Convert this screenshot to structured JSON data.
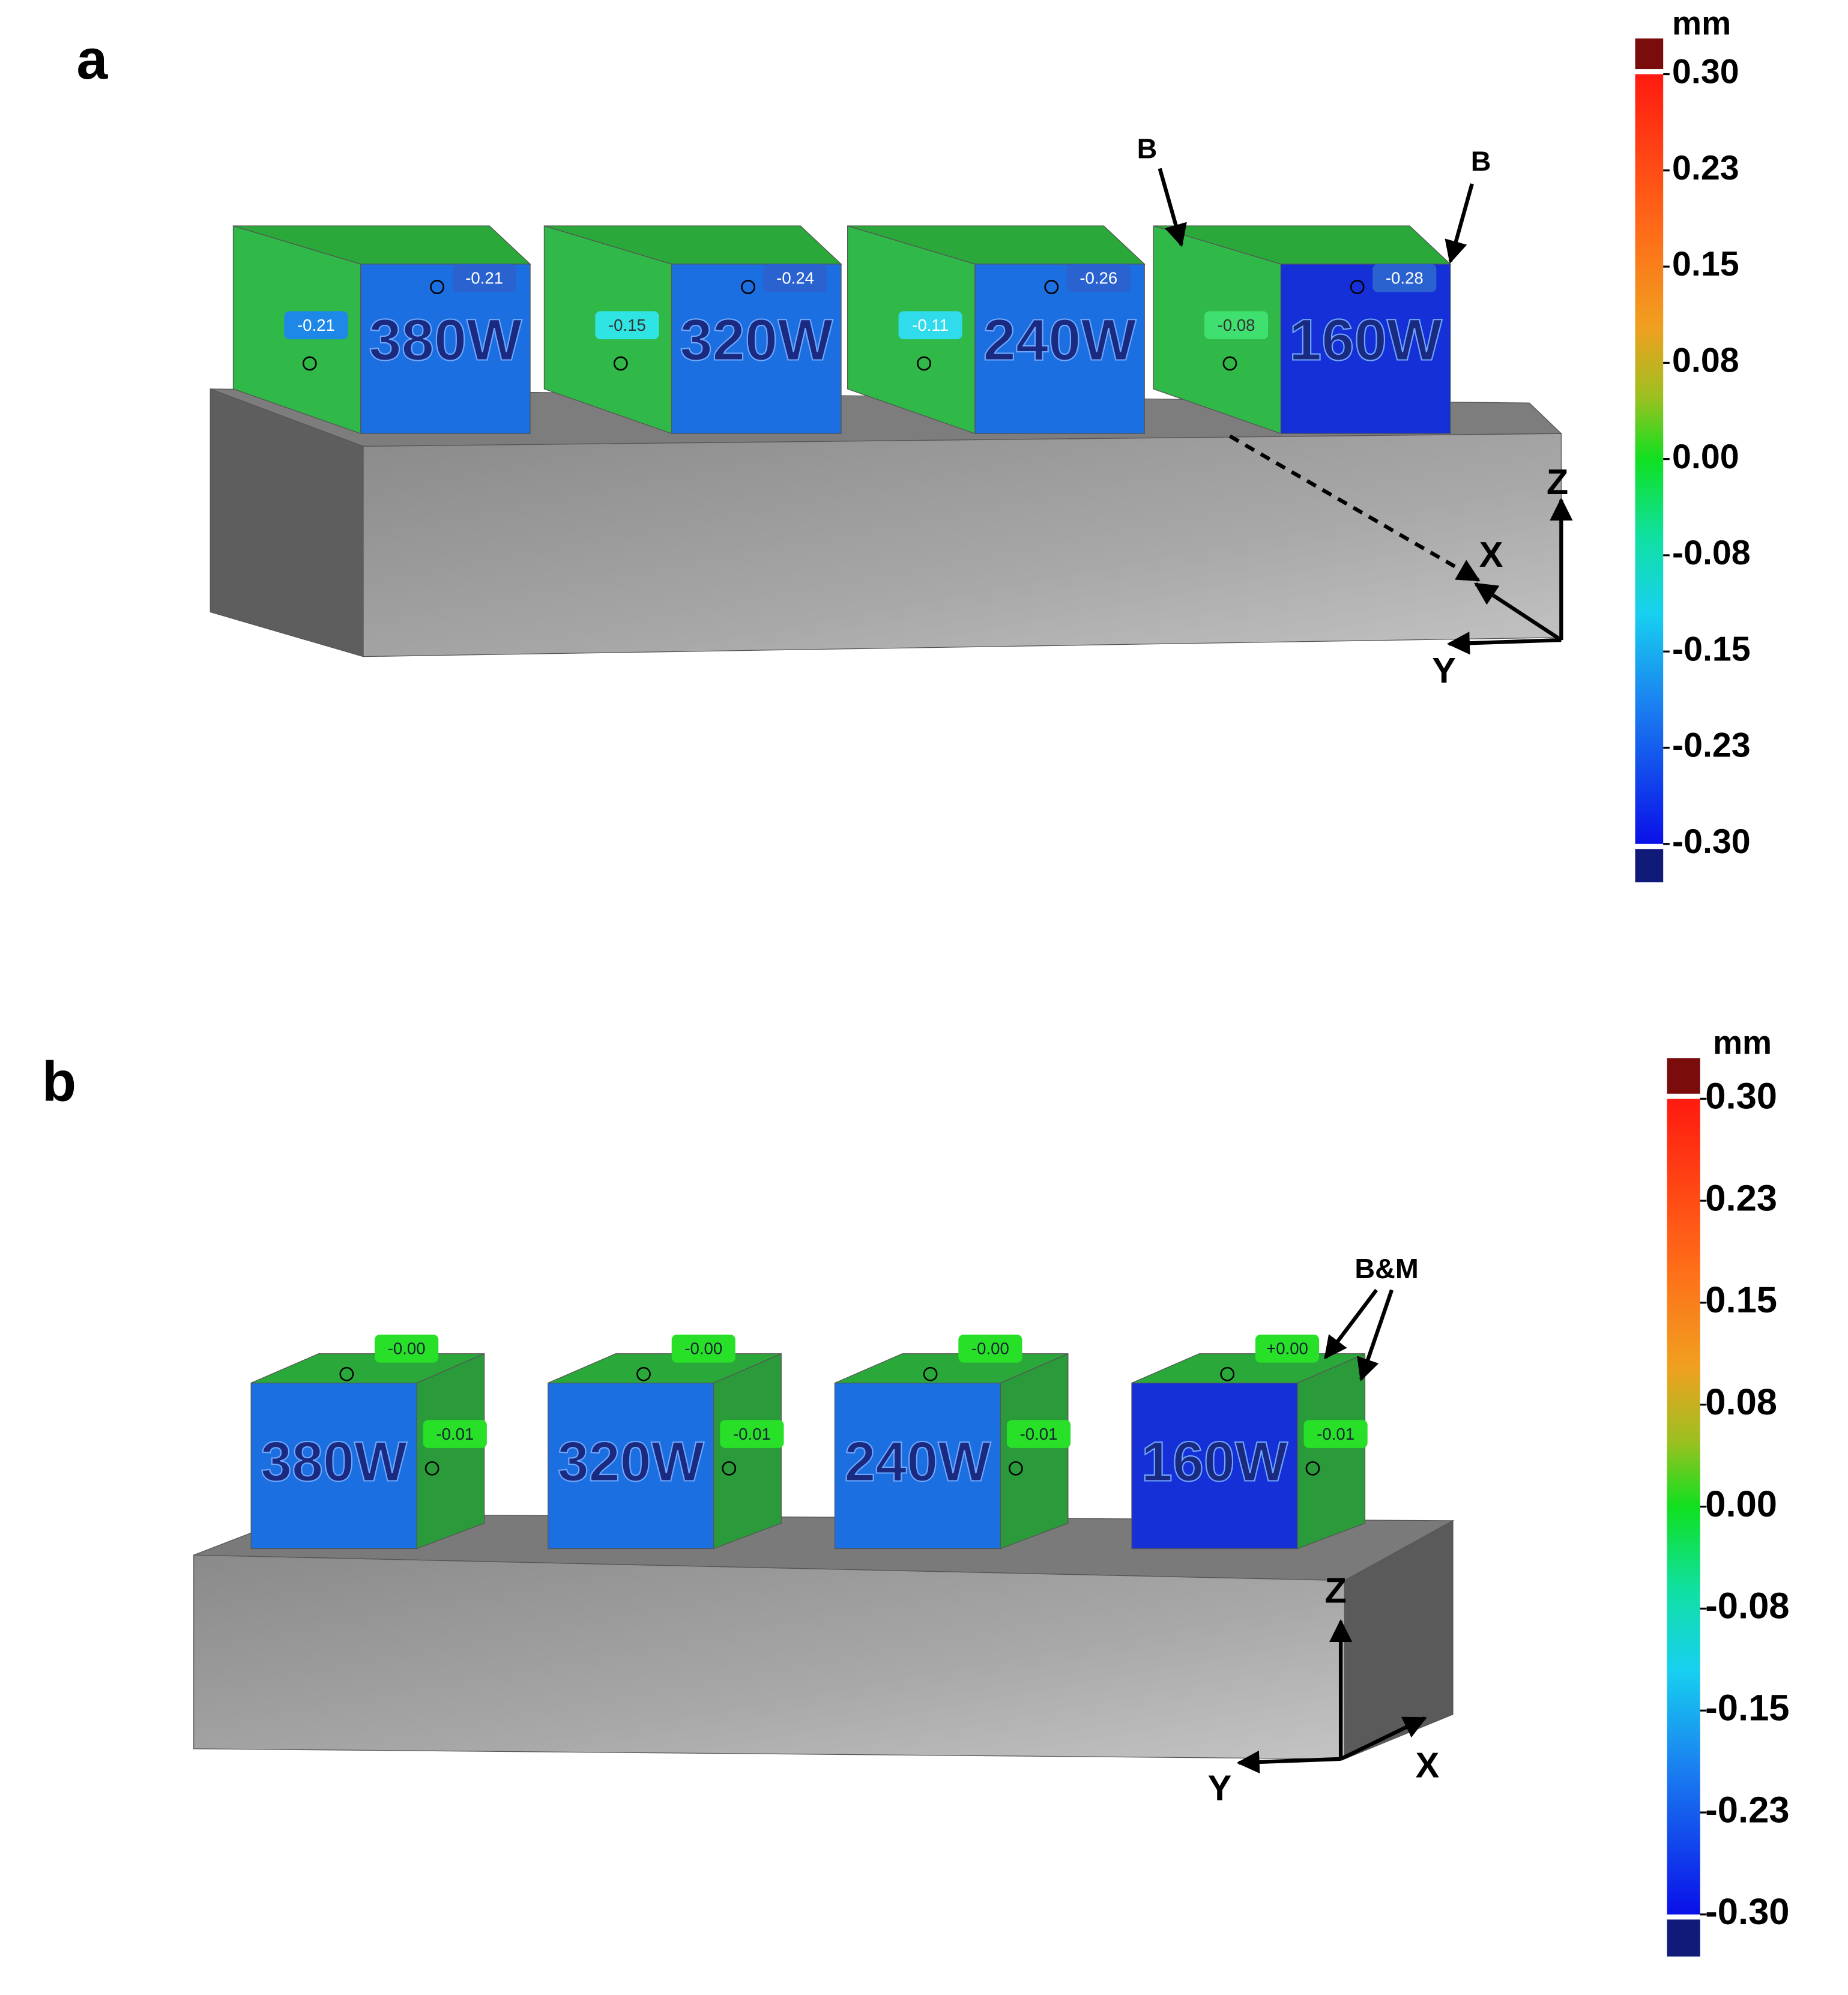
{
  "panels": [
    {
      "label": "a",
      "scale_unit": "mm",
      "scale_labels": [
        "0.30",
        "0.23",
        "0.15",
        "0.08",
        "0.00",
        "-0.08",
        "-0.15",
        "-0.23",
        "-0.30"
      ],
      "blocks": [
        {
          "name": "380W",
          "callouts": [
            "-0.21",
            "-0.21"
          ]
        },
        {
          "name": "320W",
          "callouts": [
            "-0.15",
            "-0.24"
          ]
        },
        {
          "name": "240W",
          "callouts": [
            "-0.11",
            "-0.26"
          ]
        },
        {
          "name": "160W",
          "callouts": [
            "-0.08",
            "-0.28"
          ]
        }
      ],
      "annotations": [
        "B",
        "B"
      ],
      "axes": {
        "x": "X",
        "y": "Y",
        "z": "Z"
      }
    },
    {
      "label": "b",
      "scale_unit": "mm",
      "scale_labels": [
        "0.30",
        "0.23",
        "0.15",
        "0.08",
        "0.00",
        "-0.08",
        "-0.15",
        "-0.23",
        "-0.30"
      ],
      "blocks": [
        {
          "name": "380W",
          "callouts": [
            "-0.00",
            "-0.01"
          ]
        },
        {
          "name": "320W",
          "callouts": [
            "-0.00",
            "-0.01"
          ]
        },
        {
          "name": "240W",
          "callouts": [
            "-0.00",
            "-0.01"
          ]
        },
        {
          "name": "160W",
          "callouts": [
            "+0.00",
            "-0.01"
          ]
        }
      ],
      "annotations": [
        "B&M"
      ],
      "axes": {
        "x": "X",
        "y": "Y",
        "z": "Z"
      }
    }
  ]
}
